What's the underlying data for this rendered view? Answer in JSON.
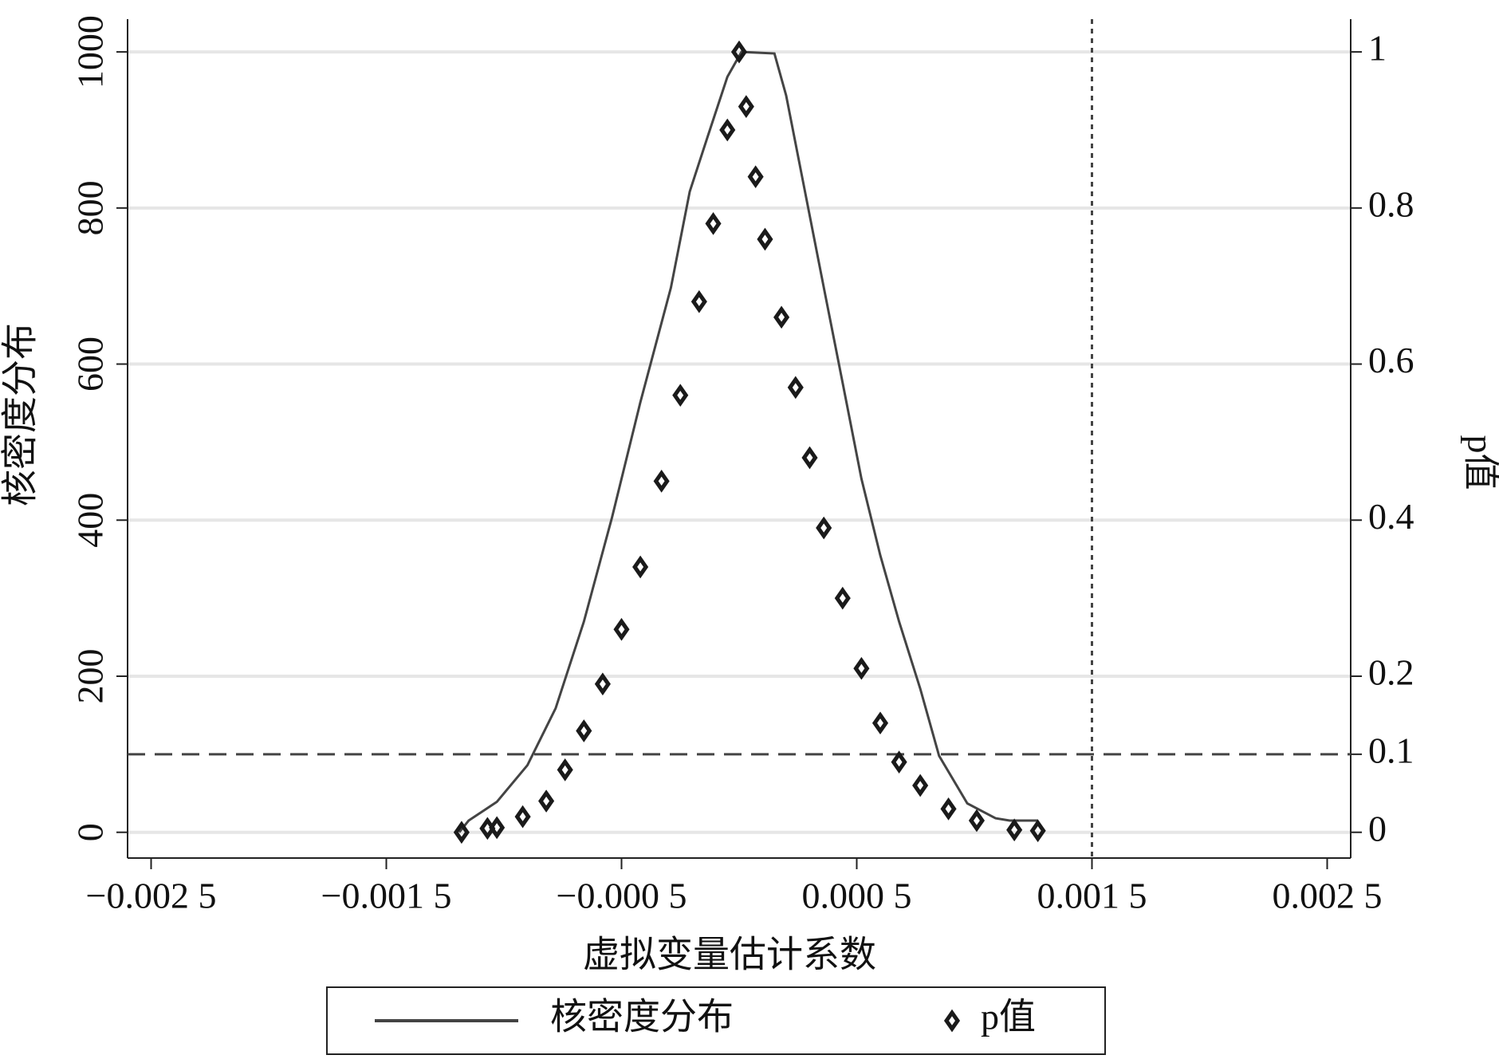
{
  "chart_data": {
    "type": "line",
    "xlabel": "虚拟变量估计系数",
    "ylabel": "核密度分布",
    "y2label": "p值",
    "xlim": [
      -0.0026,
      0.0026
    ],
    "xticks": [
      {
        "value": -0.0025,
        "label": "−0.002 5"
      },
      {
        "value": -0.0015,
        "label": "−0.001 5"
      },
      {
        "value": -0.0005,
        "label": "−0.000 5"
      },
      {
        "value": 0.0005,
        "label": "0.000 5"
      },
      {
        "value": 0.0015,
        "label": "0.001 5"
      },
      {
        "value": 0.0025,
        "label": "0.002 5"
      }
    ],
    "ylim": [
      -33,
      1042
    ],
    "yticks": [
      0,
      200,
      400,
      600,
      800,
      1000
    ],
    "y2lim": [
      -0.033,
      1.042
    ],
    "y2ticks": [
      0,
      0.1,
      0.2,
      0.4,
      0.6,
      0.8,
      1
    ],
    "grid": true,
    "hline": {
      "value": 0.1,
      "axis": "y2"
    },
    "vline": 0.0015,
    "legend": "bottom",
    "series": [
      {
        "name": "核密度分布",
        "type": "line",
        "color": "#444444",
        "x": [
          -0.00119,
          -0.00115,
          -0.00103,
          -0.0009,
          -0.00078,
          -0.00066,
          -0.00054,
          -0.00042,
          -0.00029,
          -0.00021,
          -0.00013,
          -5e-05,
          1e-05,
          0.00015,
          0.0002,
          0.00028,
          0.00036,
          0.00044,
          0.00052,
          0.0006,
          0.00068,
          0.00077,
          0.00085,
          0.00097,
          0.00109,
          0.00115,
          0.00127
        ],
        "values": [
          0,
          15,
          39,
          86,
          159,
          270,
          404,
          551,
          698,
          821,
          895,
          968,
          1000,
          998,
          944,
          821,
          698,
          576,
          453,
          355,
          270,
          184,
          98,
          37,
          18,
          15,
          15
        ]
      },
      {
        "name": "p值",
        "type": "scatter",
        "color": "#1a1a1a",
        "axis": "y2",
        "x": [
          -0.00118,
          -0.00107,
          -0.00103,
          -0.00092,
          -0.00082,
          -0.00074,
          -0.00066,
          -0.00058,
          -0.0005,
          -0.00042,
          -0.00033,
          -0.00025,
          -0.00017,
          -0.00011,
          -5e-05,
          0,
          3e-05,
          7e-05,
          0.00011,
          0.00018,
          0.00024,
          0.0003,
          0.00036,
          0.00044,
          0.00052,
          0.0006,
          0.00068,
          0.00077,
          0.00089,
          0.00101,
          0.00117,
          0.00127
        ],
        "values": [
          0,
          0.005,
          0.006,
          0.02,
          0.04,
          0.08,
          0.13,
          0.19,
          0.26,
          0.34,
          0.45,
          0.56,
          0.68,
          0.78,
          0.9,
          1.0,
          0.93,
          0.84,
          0.76,
          0.66,
          0.57,
          0.48,
          0.39,
          0.3,
          0.21,
          0.14,
          0.09,
          0.06,
          0.03,
          0.015,
          0.003,
          0.002
        ]
      }
    ]
  }
}
